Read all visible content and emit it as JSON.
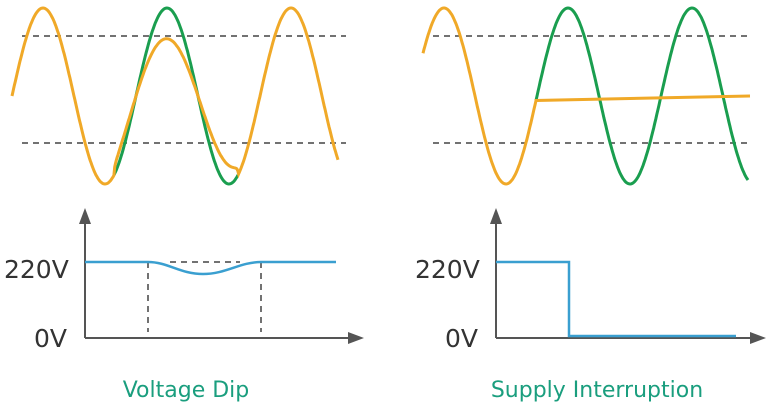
{
  "colors": {
    "dip_wave": "#f0a928",
    "nominal_wave": "#1a9e4f",
    "rms_line": "#3a9fd0",
    "axis": "#555555",
    "dashed": "#444444",
    "caption": "#1a9e7e"
  },
  "panels": [
    {
      "caption": "Voltage Dip",
      "y_labels": [
        "220V",
        "0V"
      ]
    },
    {
      "caption": "Supply Interruption",
      "y_labels": [
        "220V",
        "0V"
      ]
    }
  ]
}
